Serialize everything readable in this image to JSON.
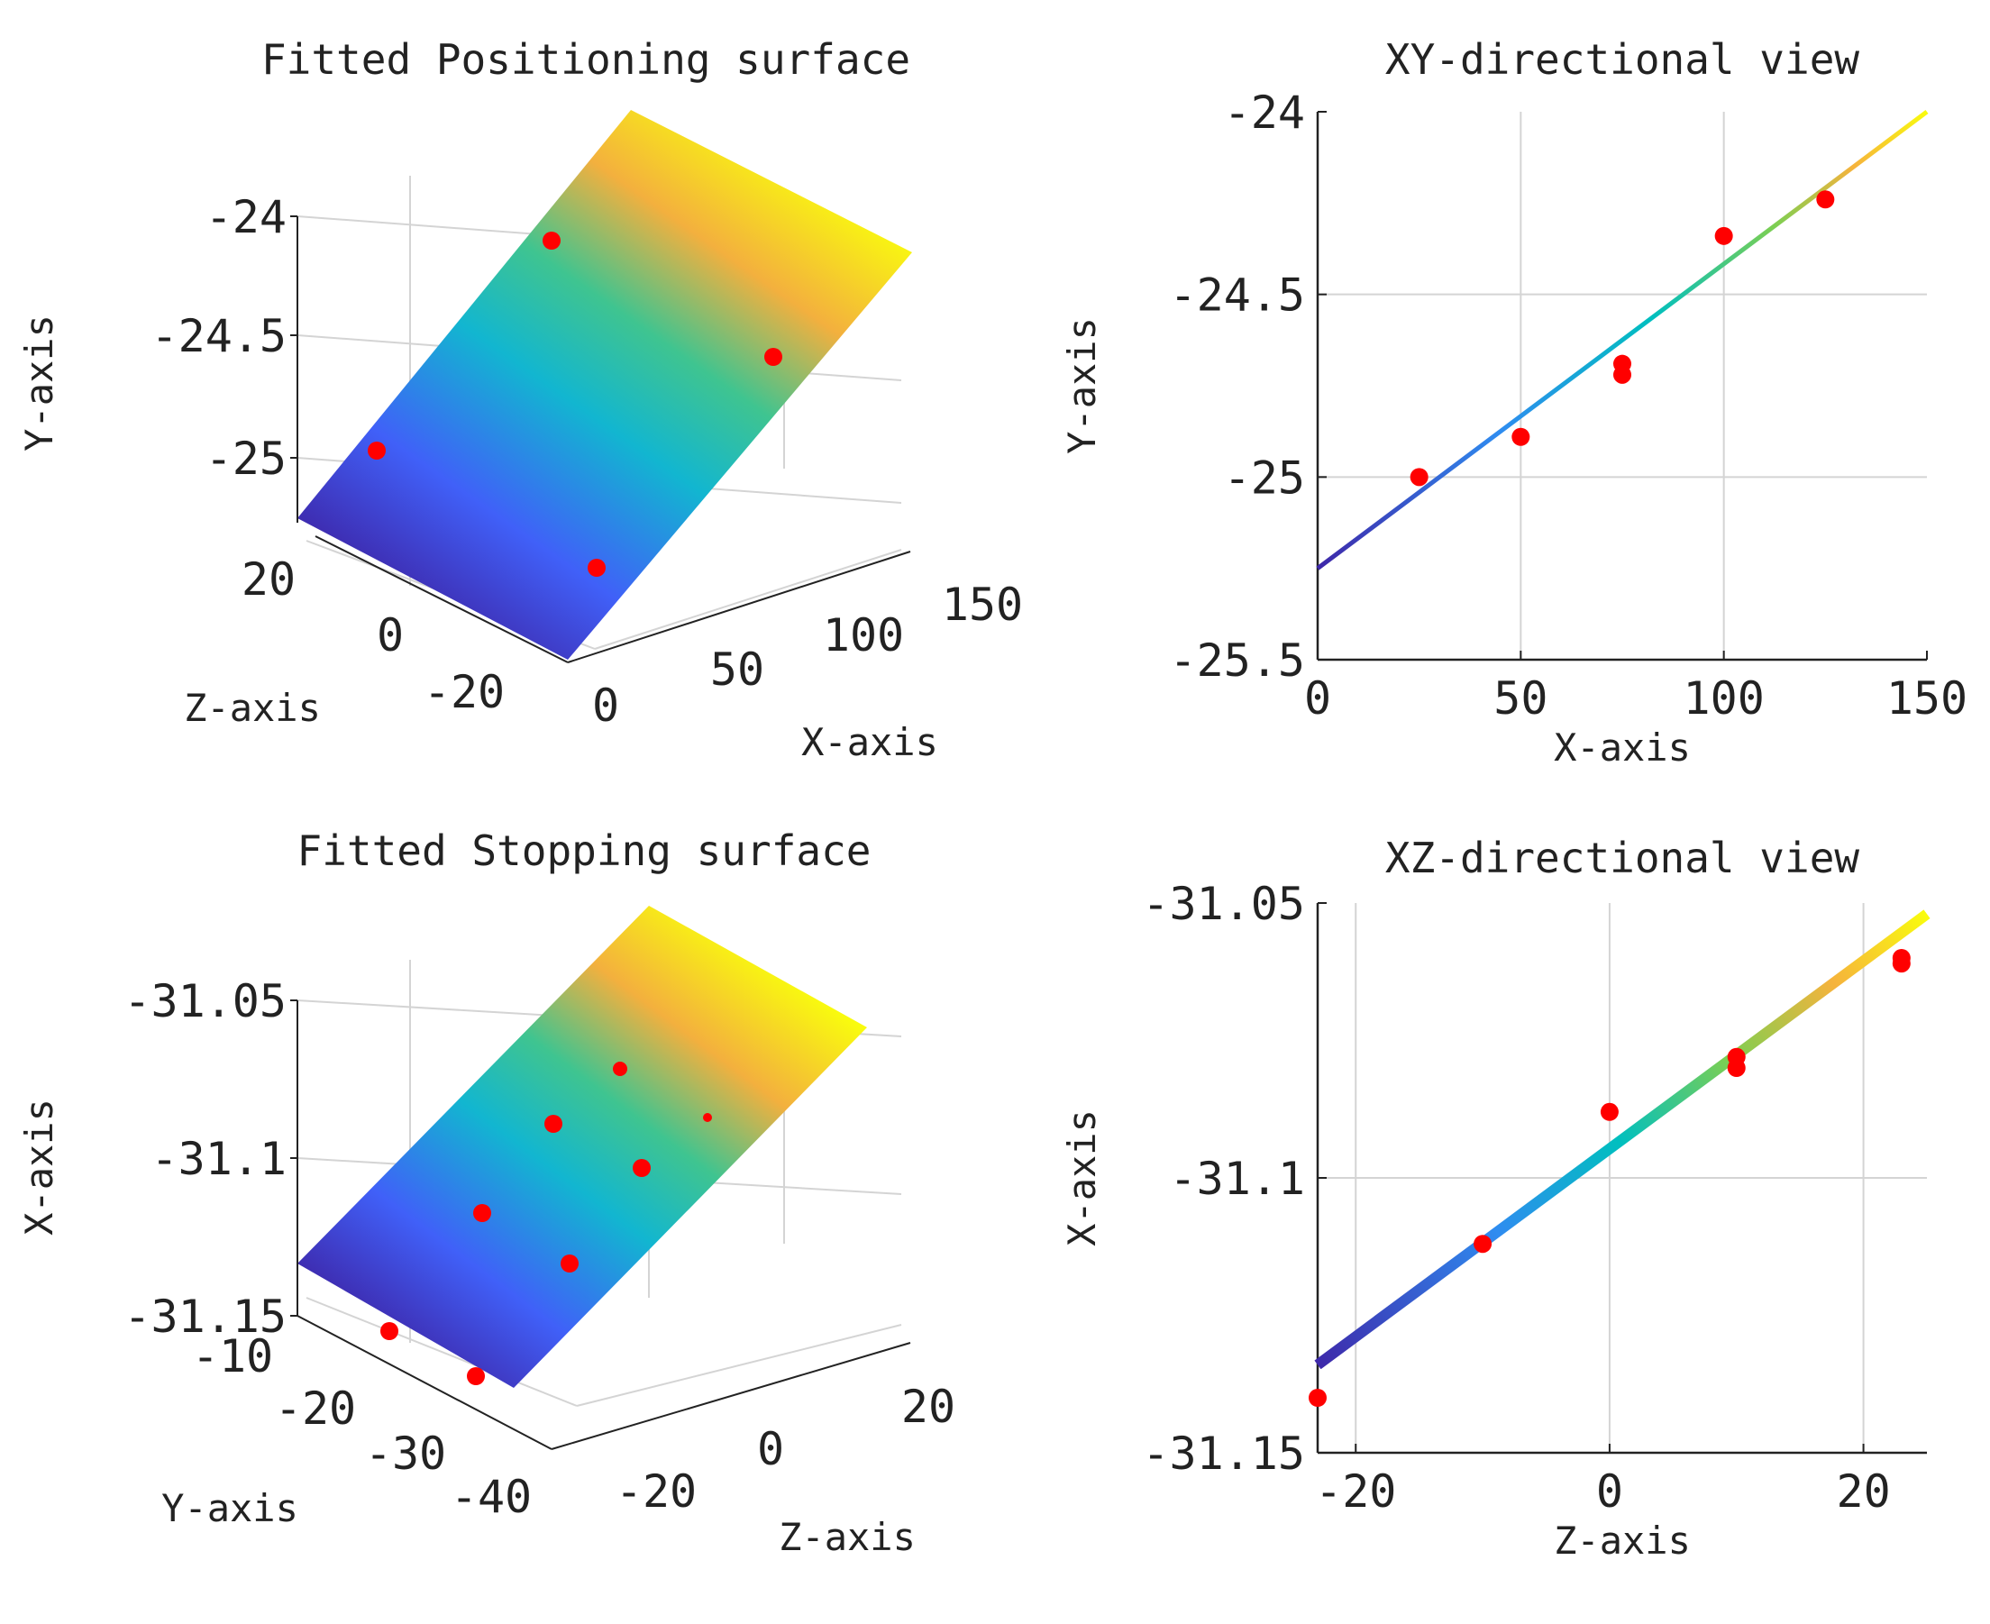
{
  "colors": {
    "point": "#ff0000",
    "axis": "#222222",
    "grid": "#d4d4d4",
    "colormap": [
      "#3e26a8",
      "#4060f8",
      "#1eaee0",
      "#00bfbf",
      "#7ccf52",
      "#f6b33c",
      "#f9fb0e"
    ]
  },
  "chart_data": [
    {
      "id": "positioning",
      "type": "surface3d",
      "title": "Fitted Positioning surface",
      "xlabel": "X-axis",
      "ylabel": "Y-axis",
      "zlabel": "Z-axis",
      "vertical_ticks": [
        "-24",
        "-24.5",
        "-25"
      ],
      "x_ticks": [
        "0",
        "50",
        "100",
        "150"
      ],
      "z_ticks": [
        "20",
        "0",
        "-20"
      ],
      "points": [
        {
          "x": 0,
          "y": -25.0,
          "z": 20
        },
        {
          "x": 0,
          "y": -24.1,
          "z": -20
        },
        {
          "x": 150,
          "y": -24.6,
          "z": 20
        },
        {
          "x": 150,
          "y": -25.3,
          "z": -20
        }
      ]
    },
    {
      "id": "xy_view",
      "type": "scatter_line",
      "title": "XY-directional view",
      "xlabel": "X-axis",
      "ylabel": "Y-axis",
      "xlim": [
        0,
        150
      ],
      "ylim": [
        -25.5,
        -24
      ],
      "xticks": [
        0,
        50,
        100,
        150
      ],
      "yticks": [
        -24,
        -24.5,
        -25,
        -25.5
      ],
      "xtick_labels": [
        "0",
        "50",
        "100",
        "150"
      ],
      "ytick_labels": [
        "-24",
        "-24.5",
        "-25",
        "-25.5"
      ],
      "fit": {
        "x": [
          0,
          150
        ],
        "y": [
          -25.25,
          -24.0
        ]
      },
      "points": [
        {
          "x": 25,
          "y": -25.0
        },
        {
          "x": 50,
          "y": -24.89
        },
        {
          "x": 75,
          "y": -24.69
        },
        {
          "x": 75,
          "y": -24.72
        },
        {
          "x": 100,
          "y": -24.34
        },
        {
          "x": 125,
          "y": -24.24
        }
      ]
    },
    {
      "id": "stopping",
      "type": "surface3d",
      "title": "Fitted Stopping surface",
      "xlabel": "Z-axis",
      "ylabel": "X-axis",
      "zlabel": "Y-axis",
      "vertical_ticks": [
        "-31.05",
        "-31.1",
        "-31.15"
      ],
      "x_ticks": [
        "-20",
        "0",
        "20"
      ],
      "z_ticks": [
        "-10",
        "-20",
        "-30",
        "-40"
      ],
      "points": [
        {
          "x": -20,
          "y": -31.07,
          "z": -40
        },
        {
          "x": 0,
          "y": -31.09,
          "z": -30
        },
        {
          "x": 10,
          "y": -31.1,
          "z": -25
        },
        {
          "x": 20,
          "y": -31.08,
          "z": -20
        },
        {
          "x": -20,
          "y": -31.12,
          "z": -30
        },
        {
          "x": 0,
          "y": -31.13,
          "z": -20
        },
        {
          "x": -20,
          "y": -31.15,
          "z": -15
        },
        {
          "x": 0,
          "y": -31.16,
          "z": -10
        }
      ]
    },
    {
      "id": "xz_view",
      "type": "scatter_line",
      "title": "XZ-directional view",
      "xlabel": "Z-axis",
      "ylabel": "X-axis",
      "xlim": [
        -23,
        25
      ],
      "ylim": [
        -31.15,
        -31.05
      ],
      "xticks": [
        -20,
        0,
        20
      ],
      "yticks": [
        -31.05,
        -31.1,
        -31.15
      ],
      "xtick_labels": [
        "-20",
        "0",
        "20"
      ],
      "ytick_labels": [
        "-31.05",
        "-31.1",
        "-31.15"
      ],
      "fit": {
        "x": [
          -23,
          25
        ],
        "y": [
          -31.134,
          -31.052
        ]
      },
      "points": [
        {
          "x": -23,
          "y": -31.14
        },
        {
          "x": -10,
          "y": -31.112
        },
        {
          "x": 0,
          "y": -31.088
        },
        {
          "x": 10,
          "y": -31.078
        },
        {
          "x": 10,
          "y": -31.08
        },
        {
          "x": 23,
          "y": -31.06
        },
        {
          "x": 23,
          "y": -31.061
        }
      ]
    }
  ]
}
